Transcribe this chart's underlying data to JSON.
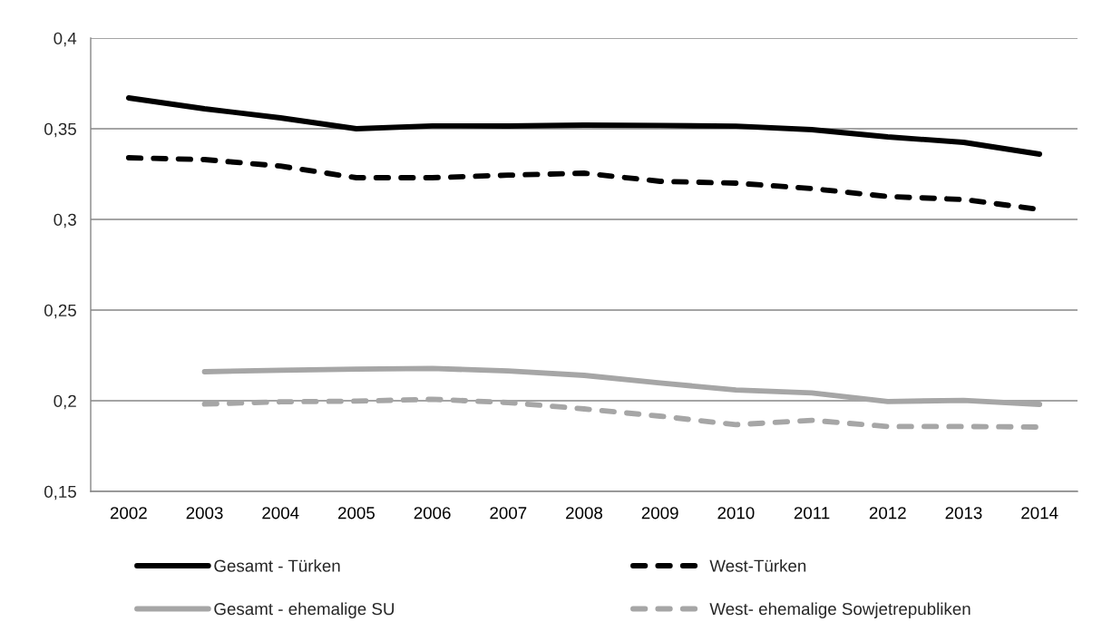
{
  "chart_data": {
    "type": "line",
    "categories": [
      "2002",
      "2003",
      "2004",
      "2005",
      "2006",
      "2007",
      "2008",
      "2009",
      "2010",
      "2011",
      "2012",
      "2013",
      "2014"
    ],
    "series": [
      {
        "name": "Gesamt - Türken",
        "color": "#000000",
        "line_style": "solid",
        "values": [
          0.367,
          0.361,
          0.356,
          0.35,
          0.3516,
          0.3515,
          0.352,
          0.3518,
          0.3514,
          0.3495,
          0.3455,
          0.3425,
          0.336
        ]
      },
      {
        "name": "West-Türken",
        "color": "#000000",
        "line_style": "dashed",
        "values": [
          0.334,
          0.333,
          0.3294,
          0.323,
          0.323,
          0.3244,
          0.3255,
          0.321,
          0.32,
          0.317,
          0.3126,
          0.311,
          0.3055
        ]
      },
      {
        "name": "Gesamt - ehemalige SU",
        "color": "#a6a6a6",
        "line_style": "solid",
        "values": [
          null,
          0.216,
          0.2168,
          0.2174,
          0.2178,
          0.2164,
          0.214,
          0.2098,
          0.2059,
          0.2043,
          0.1996,
          0.2002,
          0.198
        ]
      },
      {
        "name": "West- ehemalige Sowjetrepubliken",
        "color": "#a6a6a6",
        "line_style": "dashed",
        "values": [
          null,
          0.1982,
          0.1994,
          0.1998,
          0.2008,
          0.199,
          0.1955,
          0.1915,
          0.1868,
          0.1892,
          0.1858,
          0.1858,
          0.1855
        ]
      }
    ],
    "ylim": [
      0.15,
      0.4
    ],
    "yticks": [
      {
        "value": 0.15,
        "label": "0,15"
      },
      {
        "value": 0.2,
        "label": "0,2"
      },
      {
        "value": 0.25,
        "label": "0,25"
      },
      {
        "value": 0.3,
        "label": "0,3"
      },
      {
        "value": 0.35,
        "label": "0,35"
      },
      {
        "value": 0.4,
        "label": "0,4"
      }
    ],
    "grid": "y",
    "legend": "bottom"
  }
}
